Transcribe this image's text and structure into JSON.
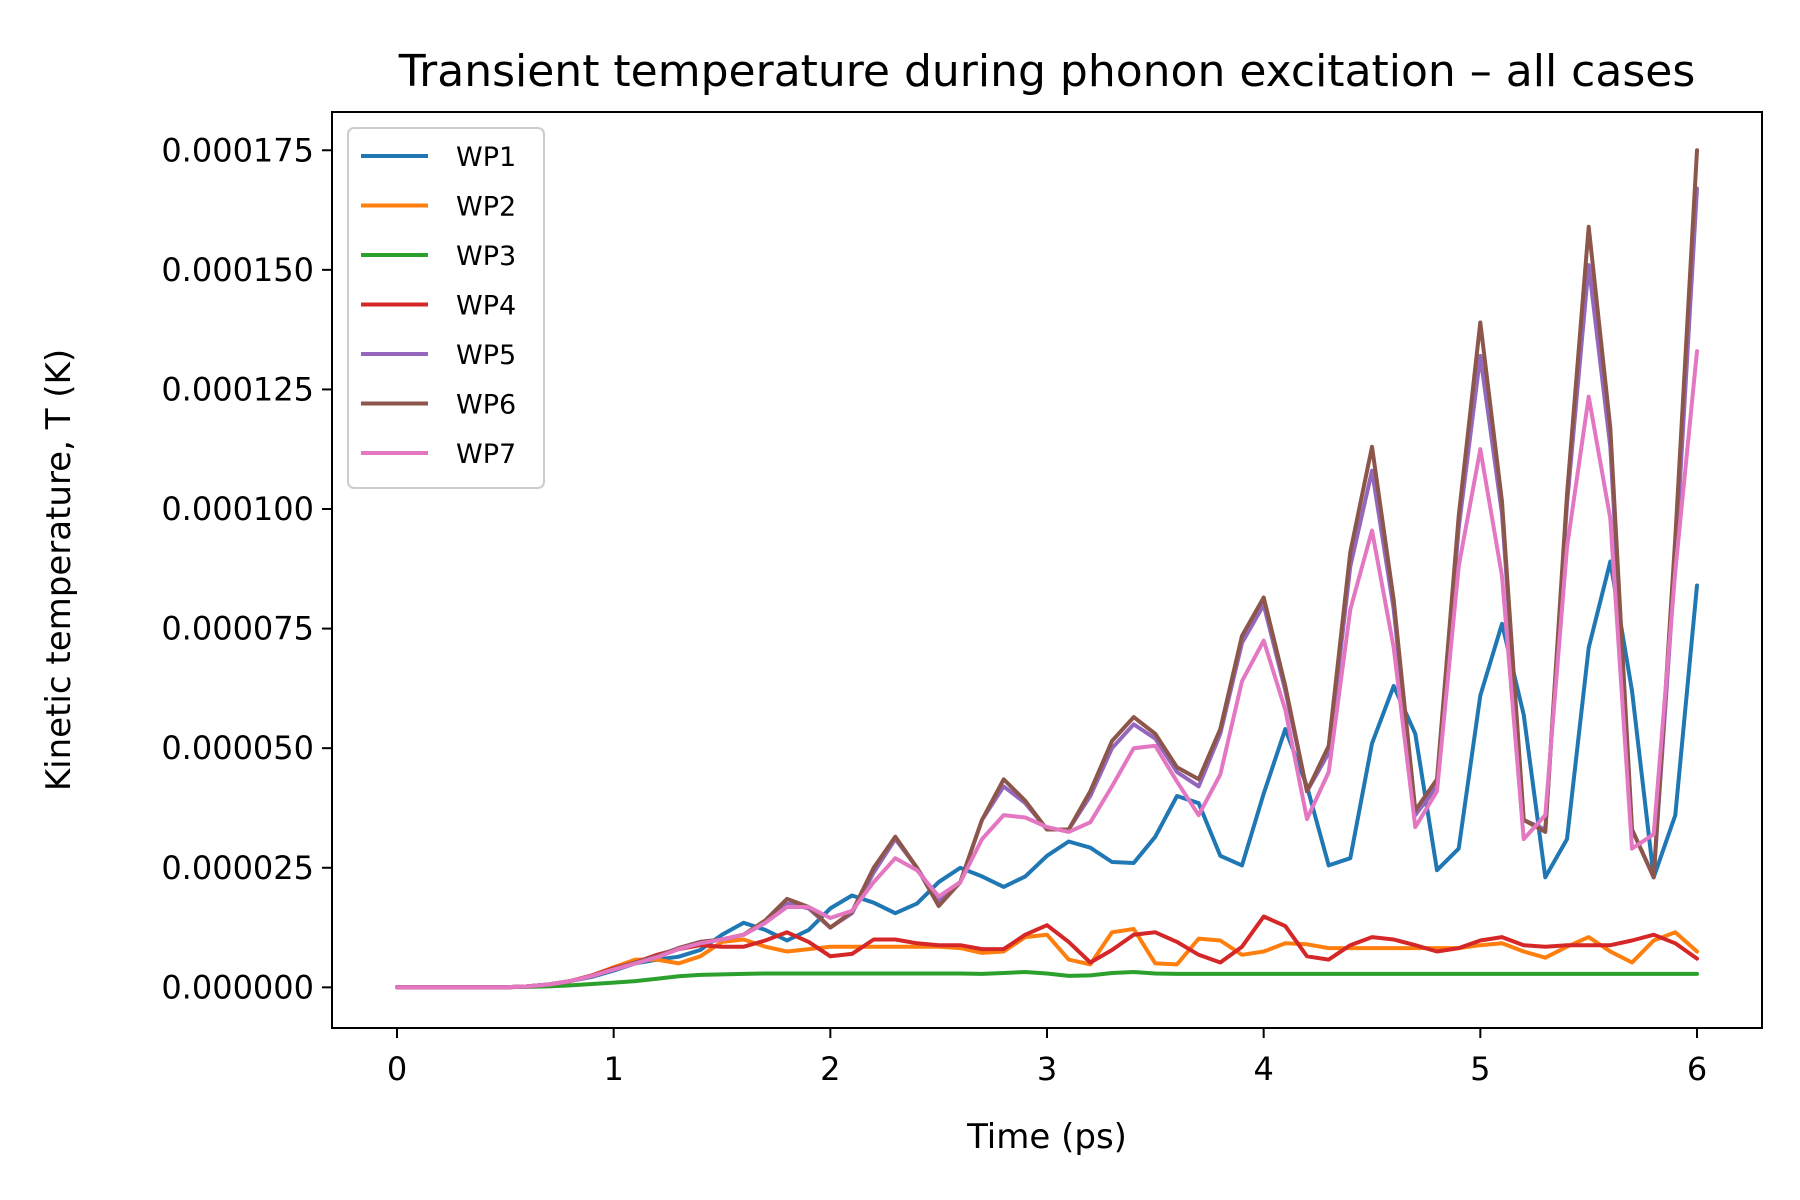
{
  "chart_data": {
    "type": "line",
    "title": "Transient temperature during phonon excitation – all cases",
    "xlabel": "Time (ps)",
    "ylabel": "Kinetic temperature, T (K)",
    "xlim": [
      -0.3,
      6.3
    ],
    "ylim": [
      -8.5e-06,
      0.000183
    ],
    "xticks": [
      0,
      1,
      2,
      3,
      4,
      5,
      6
    ],
    "xtick_labels": [
      "0",
      "1",
      "2",
      "3",
      "4",
      "5",
      "6"
    ],
    "yticks": [
      0,
      2.5e-05,
      5e-05,
      7.5e-05,
      0.0001,
      0.000125,
      0.00015,
      0.000175
    ],
    "ytick_labels": [
      "0.000000",
      "0.000025",
      "0.000050",
      "0.000075",
      "0.000100",
      "0.000125",
      "0.000150",
      "0.000175"
    ],
    "grid": false,
    "legend_position": "upper-left",
    "x": [
      0,
      0.1,
      0.2,
      0.3,
      0.4,
      0.5,
      0.6,
      0.7,
      0.8,
      0.9,
      1.0,
      1.1,
      1.2,
      1.3,
      1.4,
      1.5,
      1.6,
      1.7,
      1.8,
      1.9,
      2.0,
      2.1,
      2.2,
      2.3,
      2.4,
      2.5,
      2.6,
      2.7,
      2.8,
      2.9,
      3.0,
      3.1,
      3.2,
      3.3,
      3.4,
      3.5,
      3.6,
      3.7,
      3.8,
      3.9,
      4.0,
      4.1,
      4.2,
      4.3,
      4.4,
      4.5,
      4.6,
      4.7,
      4.8,
      4.9,
      5.0,
      5.1,
      5.2,
      5.3,
      5.4,
      5.5,
      5.6,
      5.7,
      5.8,
      5.9,
      6.0
    ],
    "series": [
      {
        "name": "WP1",
        "color": "#1f77b4",
        "values": [
          0,
          0,
          0,
          0,
          0,
          0,
          2e-07,
          6e-07,
          1.3e-06,
          2.2e-06,
          3.5e-06,
          5e-06,
          5.8e-06,
          6.4e-06,
          7.8e-06,
          1.1e-05,
          1.35e-05,
          1.2e-05,
          9.8e-06,
          1.2e-05,
          1.65e-05,
          1.92e-05,
          1.77e-05,
          1.55e-05,
          1.75e-05,
          2.2e-05,
          2.5e-05,
          2.32e-05,
          2.1e-05,
          2.32e-05,
          2.75e-05,
          3.05e-05,
          2.92e-05,
          2.62e-05,
          2.6e-05,
          3.15e-05,
          4e-05,
          3.85e-05,
          2.75e-05,
          2.55e-05,
          4.05e-05,
          5.4e-05,
          4.2e-05,
          2.55e-05,
          2.7e-05,
          5.1e-05,
          6.3e-05,
          5.3e-05,
          2.45e-05,
          2.9e-05,
          6.1e-05,
          7.6e-05,
          5.7e-05,
          2.3e-05,
          3.1e-05,
          7.1e-05,
          8.9e-05,
          6.2e-05,
          2.3e-05,
          3.6e-05,
          8.4e-05
        ]
      },
      {
        "name": "WP2",
        "color": "#ff7f0e",
        "values": [
          0,
          0,
          0,
          0,
          0,
          0,
          2e-07,
          6e-07,
          1.3e-06,
          2.5e-06,
          4.2e-06,
          5.8e-06,
          5.8e-06,
          5e-06,
          6.5e-06,
          9.5e-06,
          1e-05,
          8.5e-06,
          7.5e-06,
          8e-06,
          8.5e-06,
          8.5e-06,
          8.5e-06,
          8.5e-06,
          8.5e-06,
          8.5e-06,
          8.2e-06,
          7.2e-06,
          7.5e-06,
          1.05e-05,
          1.1e-05,
          5.8e-06,
          4.8e-06,
          1.15e-05,
          1.22e-05,
          5e-06,
          4.8e-06,
          1.02e-05,
          9.8e-06,
          6.8e-06,
          7.5e-06,
          9.2e-06,
          9e-06,
          8.2e-06,
          8.2e-06,
          8.2e-06,
          8.2e-06,
          8.2e-06,
          8.2e-06,
          8.2e-06,
          8.8e-06,
          9.2e-06,
          7.5e-06,
          6.2e-06,
          8.5e-06,
          1.05e-05,
          7.5e-06,
          5.2e-06,
          9.8e-06,
          1.15e-05,
          7.5e-06
        ]
      },
      {
        "name": "WP3",
        "color": "#2ca02c",
        "values": [
          0,
          0,
          0,
          0,
          0,
          0,
          1e-07,
          2e-07,
          4e-07,
          7e-07,
          1e-06,
          1.3e-06,
          1.8e-06,
          2.3e-06,
          2.6e-06,
          2.7e-06,
          2.8e-06,
          2.9e-06,
          2.9e-06,
          2.9e-06,
          2.9e-06,
          2.9e-06,
          2.9e-06,
          2.9e-06,
          2.9e-06,
          2.9e-06,
          2.9e-06,
          2.8e-06,
          3e-06,
          3.2e-06,
          2.9e-06,
          2.4e-06,
          2.5e-06,
          3e-06,
          3.2e-06,
          2.9e-06,
          2.8e-06,
          2.8e-06,
          2.8e-06,
          2.8e-06,
          2.8e-06,
          2.8e-06,
          2.8e-06,
          2.8e-06,
          2.8e-06,
          2.8e-06,
          2.8e-06,
          2.8e-06,
          2.8e-06,
          2.8e-06,
          2.8e-06,
          2.8e-06,
          2.8e-06,
          2.8e-06,
          2.8e-06,
          2.8e-06,
          2.8e-06,
          2.8e-06,
          2.8e-06,
          2.8e-06,
          2.8e-06
        ]
      },
      {
        "name": "WP4",
        "color": "#d62728",
        "values": [
          0,
          0,
          0,
          0,
          0,
          0,
          2e-07,
          6e-07,
          1.3e-06,
          2.5e-06,
          4e-06,
          5.2e-06,
          6.8e-06,
          8e-06,
          8.8e-06,
          8.5e-06,
          8.5e-06,
          9.8e-06,
          1.15e-05,
          9.5e-06,
          6.5e-06,
          7e-06,
          1e-05,
          1e-05,
          9.2e-06,
          8.8e-06,
          8.8e-06,
          8e-06,
          8e-06,
          1.1e-05,
          1.3e-05,
          9.5e-06,
          5.2e-06,
          7.8e-06,
          1.1e-05,
          1.15e-05,
          9.5e-06,
          6.8e-06,
          5.2e-06,
          8.5e-06,
          1.48e-05,
          1.28e-05,
          6.5e-06,
          5.8e-06,
          8.8e-06,
          1.05e-05,
          1e-05,
          8.8e-06,
          7.5e-06,
          8.2e-06,
          9.8e-06,
          1.05e-05,
          8.8e-06,
          8.5e-06,
          8.8e-06,
          8.8e-06,
          8.8e-06,
          9.8e-06,
          1.1e-05,
          9.2e-06,
          6e-06
        ]
      },
      {
        "name": "WP5",
        "color": "#9467bd",
        "values": [
          0,
          0,
          0,
          0,
          0,
          0,
          2e-07,
          6e-07,
          1.3e-06,
          2.4e-06,
          3.8e-06,
          5.2e-06,
          6.5e-06,
          8.2e-06,
          9.5e-06,
          1e-05,
          1.1e-05,
          1.35e-05,
          1.75e-05,
          1.65e-05,
          1.25e-05,
          1.55e-05,
          2.4e-05,
          3.1e-05,
          2.5e-05,
          1.8e-05,
          2.2e-05,
          3.5e-05,
          4.2e-05,
          3.85e-05,
          3.3e-05,
          3.3e-05,
          4e-05,
          5e-05,
          5.5e-05,
          5.2e-05,
          4.5e-05,
          4.2e-05,
          5.3e-05,
          7.2e-05,
          8e-05,
          6.2e-05,
          4.1e-05,
          4.9e-05,
          8.8e-05,
          0.000108,
          7.9e-05,
          3.6e-05,
          4.2e-05,
          9.6e-05,
          0.000132,
          9.9e-05,
          3.5e-05,
          3.3e-05,
          0.000101,
          0.000151,
          0.000113,
          3.3e-05,
          2.3e-05,
          8.9e-05,
          0.000167
        ]
      },
      {
        "name": "WP6",
        "color": "#8c564b",
        "values": [
          0,
          0,
          0,
          0,
          0,
          0,
          2e-07,
          6e-07,
          1.3e-06,
          2.4e-06,
          3.8e-06,
          5.2e-06,
          6.5e-06,
          8.2e-06,
          9.5e-06,
          1e-05,
          1.1e-05,
          1.4e-05,
          1.85e-05,
          1.68e-05,
          1.25e-05,
          1.58e-05,
          2.5e-05,
          3.15e-05,
          2.5e-05,
          1.7e-05,
          2.2e-05,
          3.5e-05,
          4.35e-05,
          3.9e-05,
          3.3e-05,
          3.3e-05,
          4.1e-05,
          5.15e-05,
          5.65e-05,
          5.3e-05,
          4.6e-05,
          4.35e-05,
          5.4e-05,
          7.35e-05,
          8.15e-05,
          6.3e-05,
          4.1e-05,
          5.05e-05,
          9.1e-05,
          0.000113,
          8.1e-05,
          3.7e-05,
          4.35e-05,
          9.85e-05,
          0.000139,
          0.0001015,
          3.5e-05,
          3.25e-05,
          0.000103,
          0.000159,
          0.000117,
          3.3e-05,
          2.3e-05,
          9.4e-05,
          0.000175
        ]
      },
      {
        "name": "WP7",
        "color": "#e377c2",
        "values": [
          0,
          0,
          0,
          0,
          0,
          0,
          2e-07,
          6e-07,
          1.3e-06,
          2.4e-06,
          3.7e-06,
          5e-06,
          6.3e-06,
          8e-06,
          9.2e-06,
          1e-05,
          1.1e-05,
          1.35e-05,
          1.68e-05,
          1.68e-05,
          1.45e-05,
          1.6e-05,
          2.2e-05,
          2.7e-05,
          2.45e-05,
          1.9e-05,
          2.2e-05,
          3.1e-05,
          3.6e-05,
          3.55e-05,
          3.35e-05,
          3.25e-05,
          3.45e-05,
          4.2e-05,
          5e-05,
          5.05e-05,
          4.3e-05,
          3.6e-05,
          4.45e-05,
          6.4e-05,
          7.25e-05,
          5.8e-05,
          3.52e-05,
          4.5e-05,
          7.9e-05,
          9.55e-05,
          7.1e-05,
          3.35e-05,
          4.1e-05,
          8.8e-05,
          0.0001125,
          8.6e-05,
          3.1e-05,
          3.6e-05,
          9.2e-05,
          0.0001235,
          9.8e-05,
          2.9e-05,
          3.2e-05,
          8.7e-05,
          0.000133
        ]
      }
    ]
  }
}
